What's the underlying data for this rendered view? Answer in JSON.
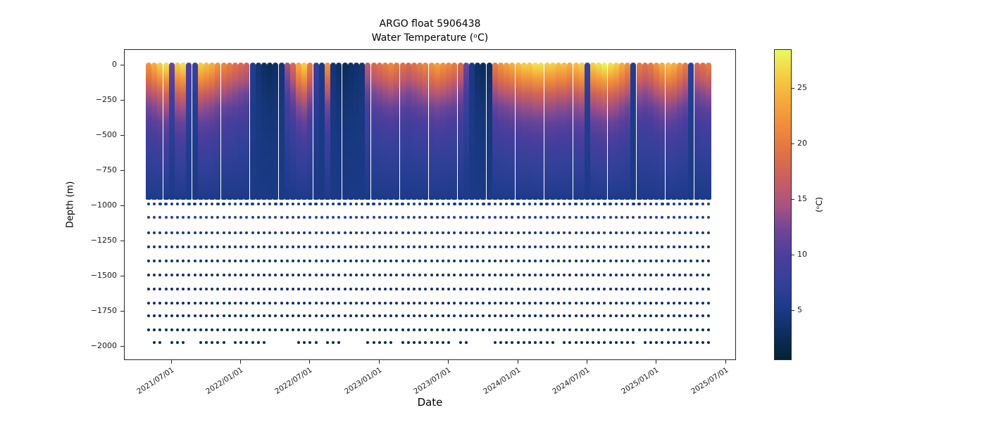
{
  "figure": {
    "title_line1": "ARGO float 5906438",
    "title_line2": "Water Temperature (ᵒC)",
    "xlabel": "Date",
    "ylabel": "Depth (m)",
    "colorbar_label": "(ᵒC)"
  },
  "axes": {
    "x_ticks": [
      {
        "label": "2021/07/01",
        "month_offset": 2
      },
      {
        "label": "2022/01/01",
        "month_offset": 8
      },
      {
        "label": "2022/07/01",
        "month_offset": 14
      },
      {
        "label": "2023/01/01",
        "month_offset": 20
      },
      {
        "label": "2023/07/01",
        "month_offset": 26
      },
      {
        "label": "2024/01/01",
        "month_offset": 32
      },
      {
        "label": "2024/07/01",
        "month_offset": 38
      },
      {
        "label": "2025/01/01",
        "month_offset": 44
      },
      {
        "label": "2025/07/01",
        "month_offset": 50
      }
    ],
    "y_ticks": [
      {
        "label": "0",
        "depth": 0
      },
      {
        "label": "−250",
        "depth": 250
      },
      {
        "label": "−500",
        "depth": 500
      },
      {
        "label": "−750",
        "depth": 750
      },
      {
        "label": "−1000",
        "depth": 1000
      },
      {
        "label": "−1250",
        "depth": 1250
      },
      {
        "label": "−1500",
        "depth": 1500
      },
      {
        "label": "−1750",
        "depth": 1750
      },
      {
        "label": "−2000",
        "depth": 2000
      }
    ],
    "colorbar_ticks": [
      {
        "label": "25",
        "value": 25
      },
      {
        "label": "20",
        "value": 20
      },
      {
        "label": "15",
        "value": 15
      },
      {
        "label": "10",
        "value": 10
      },
      {
        "label": "5",
        "value": 5
      }
    ]
  },
  "chart_data": {
    "type": "scatter",
    "description": "Temperature profiles vs time for ARGO float 5906438; dense profiles 0 to -1000 m, discrete sample rows from -1080 to -1970 m",
    "time_start": "2021/05",
    "time_step": "half-month",
    "vmin": 0.5,
    "vmax": 28.5,
    "colormap": "cmocean-thermal",
    "colormap_stops": [
      [
        0.0,
        "#042333"
      ],
      [
        0.08,
        "#0c2d5e"
      ],
      [
        0.16,
        "#1a3a86"
      ],
      [
        0.25,
        "#33409a"
      ],
      [
        0.33,
        "#4a3d9c"
      ],
      [
        0.42,
        "#6f4698"
      ],
      [
        0.5,
        "#aa5380"
      ],
      [
        0.58,
        "#c95e60"
      ],
      [
        0.66,
        "#df7046"
      ],
      [
        0.75,
        "#ef8b3c"
      ],
      [
        0.84,
        "#f6ab3d"
      ],
      [
        0.92,
        "#f5cf45"
      ],
      [
        1.0,
        "#e9fa5e"
      ]
    ],
    "surface_temps": [
      22,
      24,
      26,
      27,
      12,
      26,
      27,
      10,
      8,
      26,
      25,
      24,
      22,
      21,
      20,
      19,
      18,
      17,
      6,
      4,
      3,
      2.5,
      3,
      4,
      14,
      18,
      24,
      26,
      20,
      8,
      5,
      22,
      4,
      3,
      2.5,
      3,
      3.5,
      4,
      16,
      18,
      19,
      20,
      21,
      20,
      19,
      18,
      19,
      20,
      21,
      22,
      23,
      22,
      21,
      20,
      18,
      12,
      5,
      3,
      2.5,
      3,
      20,
      22,
      23,
      24,
      25,
      26,
      26,
      27,
      27,
      26,
      26,
      25,
      25,
      24,
      25,
      26,
      8,
      26,
      27,
      28,
      27,
      26,
      24,
      22,
      6,
      20,
      19,
      20,
      22,
      24,
      25,
      24,
      22,
      20,
      7,
      18,
      19,
      20
    ],
    "profile_depths": [
      0,
      100,
      200,
      300,
      400,
      500,
      600,
      700,
      800,
      900,
      1000
    ],
    "profile_factors": [
      1.0,
      0.8,
      0.58,
      0.42,
      0.31,
      0.235,
      0.175,
      0.125,
      0.085,
      0.045,
      0.0
    ],
    "deep_temp": 5.0,
    "block_bottom_row_depth": 985,
    "deep_rows": [
      {
        "depth": 1080,
        "temp": 7.0
      },
      {
        "depth": 1190,
        "temp": 4.8
      },
      {
        "depth": 1290,
        "temp": 4.3
      },
      {
        "depth": 1390,
        "temp": 3.9
      },
      {
        "depth": 1490,
        "temp": 3.6
      },
      {
        "depth": 1590,
        "temp": 3.3
      },
      {
        "depth": 1690,
        "temp": 3.0
      },
      {
        "depth": 1780,
        "temp": 2.8
      },
      {
        "depth": 1880,
        "temp": 2.6
      },
      {
        "depth": 1970,
        "temp": 2.4,
        "segments": [
          [
            1,
            2
          ],
          [
            4,
            6
          ],
          [
            9,
            13
          ],
          [
            15,
            20
          ],
          [
            26,
            29
          ],
          [
            31,
            33
          ],
          [
            38,
            42
          ],
          [
            44,
            52
          ],
          [
            54,
            55
          ],
          [
            60,
            70
          ],
          [
            72,
            84
          ],
          [
            86,
            97
          ]
        ]
      }
    ]
  }
}
